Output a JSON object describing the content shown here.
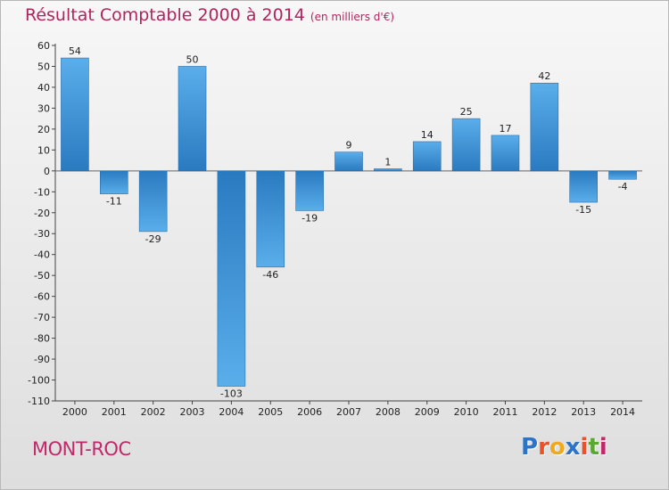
{
  "chart_data": {
    "type": "bar",
    "title": "Résultat Comptable 2000 à 2014",
    "unit": "(en milliers d'€)",
    "categories": [
      "2000",
      "2001",
      "2002",
      "2003",
      "2004",
      "2005",
      "2006",
      "2007",
      "2008",
      "2009",
      "2010",
      "2011",
      "2012",
      "2013",
      "2014"
    ],
    "values": [
      54,
      -11,
      -29,
      50,
      -103,
      -46,
      -19,
      9,
      1,
      14,
      25,
      17,
      42,
      -15,
      -4
    ],
    "data_labels": [
      "54",
      "-11",
      "-29",
      "50",
      "-103",
      "-46",
      "-19",
      "9",
      "1",
      "14",
      "25",
      "17",
      "42",
      "-15",
      "-4"
    ],
    "ylim": [
      -110,
      60
    ],
    "yticks": [
      60,
      50,
      40,
      30,
      20,
      10,
      0,
      -10,
      -20,
      -30,
      -40,
      -50,
      -60,
      -70,
      -80,
      -90,
      -100,
      -110
    ],
    "grid": false,
    "bar_color": "#3a8fd6"
  },
  "footer": {
    "city": "MONT-ROC",
    "logo_letters": [
      "P",
      "r",
      "o",
      "x",
      "i",
      "t",
      "i"
    ],
    "logo_colors": [
      "#2b74c7",
      "#e8532b",
      "#f2a81d",
      "#2b74c7",
      "#e8532b",
      "#5aa832",
      "#c0286a"
    ]
  }
}
